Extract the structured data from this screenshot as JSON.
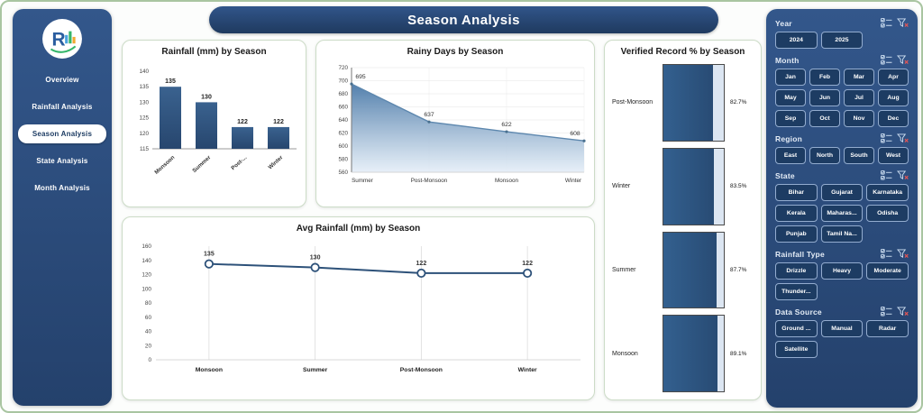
{
  "header": {
    "title": "Season Analysis"
  },
  "sidebar": {
    "logo_text": "R",
    "items": [
      {
        "label": "Overview",
        "active": false
      },
      {
        "label": "Rainfall Analysis",
        "active": false
      },
      {
        "label": "Season Analysis",
        "active": true
      },
      {
        "label": "State Analysis",
        "active": false
      },
      {
        "label": "Month Analysis",
        "active": false
      }
    ]
  },
  "chart_data": [
    {
      "id": "rainfall-by-season",
      "type": "bar",
      "title": "Rainfall (mm) by Season",
      "categories": [
        "Monsoon",
        "Summer",
        "Post-...",
        "Winter"
      ],
      "values": [
        135,
        130,
        122,
        122
      ],
      "ylim": [
        115,
        140
      ],
      "ytick_step": 5,
      "grid": false,
      "legend": "none"
    },
    {
      "id": "rainy-days-by-season",
      "type": "area",
      "title": "Rainy Days by Season",
      "categories": [
        "Summer",
        "Post-Monsoon",
        "Monsoon",
        "Winter"
      ],
      "values": [
        695,
        637,
        622,
        608
      ],
      "ylim": [
        560,
        720
      ],
      "ytick_step": 20,
      "grid": true,
      "legend": "none"
    },
    {
      "id": "verified-record-by-season",
      "type": "bar-horizontal",
      "title": "Verified Record % by Season",
      "categories": [
        "Post-Monsoon",
        "Winter",
        "Summer",
        "Monsoon"
      ],
      "values": [
        82.7,
        83.5,
        87.7,
        89.1
      ],
      "labels": [
        "82.7%",
        "83.5%",
        "87.7%",
        "89.1%"
      ],
      "xlim": [
        0,
        100
      ],
      "legend": "none"
    },
    {
      "id": "avg-rainfall-by-season",
      "type": "line",
      "title": "Avg Rainfall (mm) by Season",
      "categories": [
        "Monsoon",
        "Summer",
        "Post-Monsoon",
        "Winter"
      ],
      "values": [
        135,
        130,
        122,
        122
      ],
      "ylim": [
        0,
        160
      ],
      "ytick_step": 20,
      "grid": "vertical",
      "legend": "none"
    }
  ],
  "filters": {
    "icons": [
      "select-all-icon",
      "clear-filter-icon"
    ],
    "sections": [
      {
        "label": "Year",
        "cols": 3,
        "options": [
          "2024",
          "2025"
        ]
      },
      {
        "label": "Month",
        "cols": 4,
        "options": [
          "Jan",
          "Feb",
          "Mar",
          "Apr",
          "May",
          "Jun",
          "Jul",
          "Aug",
          "Sep",
          "Oct",
          "Nov",
          "Dec"
        ]
      },
      {
        "label": "Region",
        "cols": 4,
        "options": [
          "East",
          "North",
          "South",
          "West"
        ]
      },
      {
        "label": "State",
        "cols": 3,
        "options": [
          "Bihar",
          "Gujarat",
          "Karnataka",
          "Kerala",
          "Maharas...",
          "Odisha",
          "Punjab",
          "Tamil Na..."
        ]
      },
      {
        "label": "Rainfall Type",
        "cols": 3,
        "options": [
          "Drizzle",
          "Heavy",
          "Moderate",
          "Thunder..."
        ]
      },
      {
        "label": "Data Source",
        "cols": 3,
        "options": [
          "Ground ...",
          "Manual",
          "Radar",
          "Satellite"
        ]
      }
    ]
  },
  "colors": {
    "navy_panel": "#2d5080",
    "bar_fill": "#2f5788",
    "track_light": "#dce6f2",
    "accent_border": "#a9c5a1",
    "clear_filter_red": "#e05555"
  }
}
